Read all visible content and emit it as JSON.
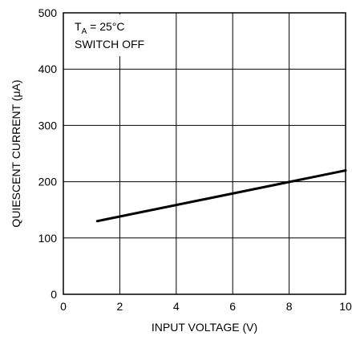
{
  "chart_data": {
    "type": "line",
    "title": "",
    "xlabel": "INPUT VOLTAGE (V)",
    "ylabel": "QUIESCENT CURRENT (μA)",
    "xlim": [
      0,
      10
    ],
    "ylim": [
      0,
      500
    ],
    "xticks": [
      "0",
      "2",
      "4",
      "6",
      "8",
      "10"
    ],
    "yticks": [
      "0",
      "100",
      "200",
      "300",
      "400",
      "500"
    ],
    "grid": true,
    "annotation": {
      "condition_symbol": "T",
      "condition_subscript": "A",
      "condition_value": " = 25°C",
      "state": "SWITCH OFF"
    },
    "series": [
      {
        "x": [
          1.2,
          10
        ],
        "y": [
          130,
          220
        ]
      }
    ]
  }
}
